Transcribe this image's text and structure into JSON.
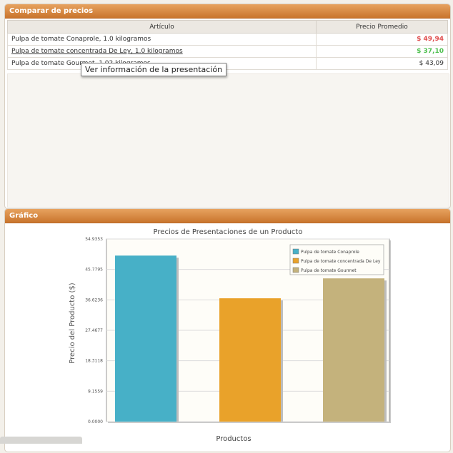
{
  "prices_panel": {
    "title": "Comparar de precios",
    "columns": {
      "article": "Artículo",
      "avg_price": "Precio Promedio"
    },
    "rows": [
      {
        "name": "Pulpa de tomate Conaprole, 1.0 kilogramos",
        "price": "$ 49,94",
        "status": "high"
      },
      {
        "name": "Pulpa de tomate concentrada De Ley, 1.0 kilogramos",
        "price": "$ 37,10",
        "status": "low"
      },
      {
        "name": "Pulpa de tomate Gourmet, 1.02 kilogramos",
        "price": "$ 43,09",
        "status": "normal"
      }
    ],
    "tooltip": "Ver información de la presentación"
  },
  "chart_panel": {
    "title": "Gráfico"
  },
  "colors": {
    "header": "#d98a3f",
    "price_high": "#e04e4e",
    "price_low": "#4fc04f"
  },
  "chart_data": {
    "type": "bar",
    "title": "Precios de Presentaciones de un Producto",
    "xlabel": "Productos",
    "ylabel": "Precio del Producto ($)",
    "ylim": [
      0,
      54.9353
    ],
    "y_ticks": [
      "0.0000",
      "9.1559",
      "18.3118",
      "27.4677",
      "36.6236",
      "45.7795",
      "54.9353"
    ],
    "grid": true,
    "legend_position": "top-right",
    "series": [
      {
        "name": "Pulpa de tomate Conaprole",
        "value": 49.94,
        "color": "#47b0c7"
      },
      {
        "name": "Pulpa de tomate concentrada De Ley",
        "value": 37.1,
        "color": "#e9a22a"
      },
      {
        "name": "Pulpa de tomate Gourmet",
        "value": 43.09,
        "color": "#c4b27c"
      }
    ]
  }
}
